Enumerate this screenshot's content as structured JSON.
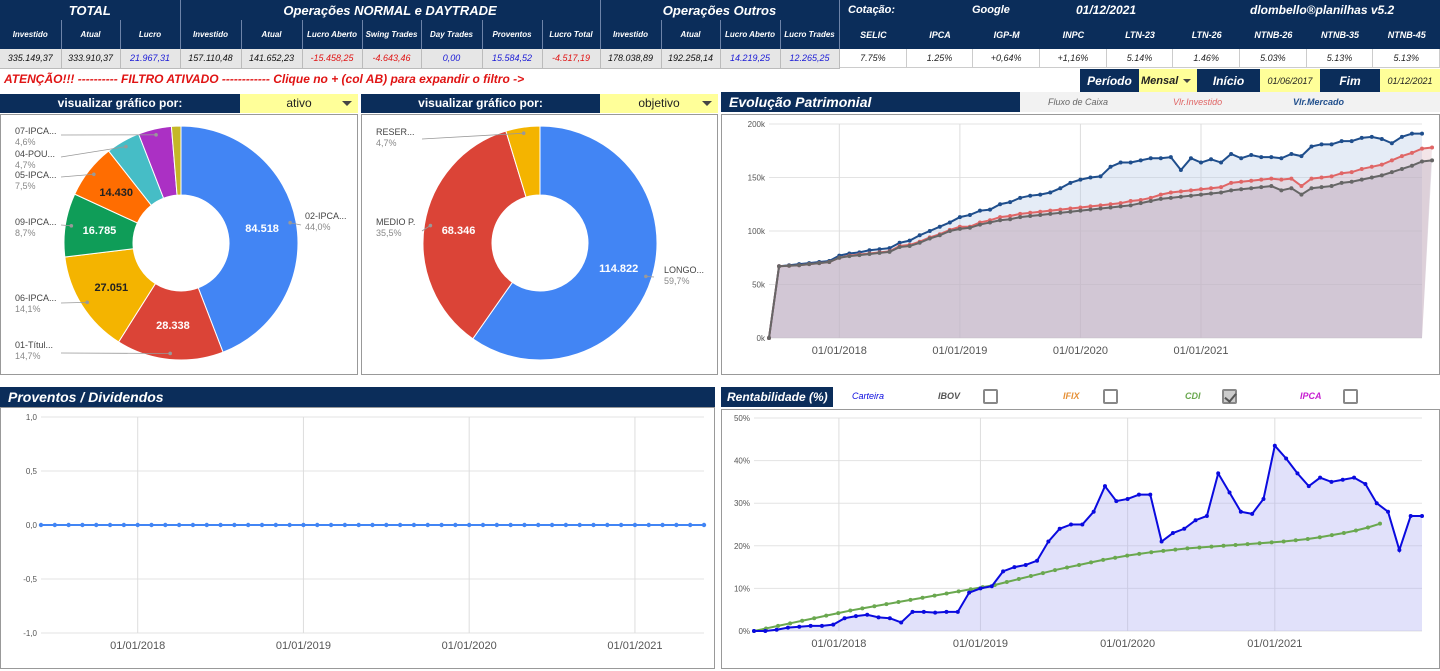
{
  "summary": {
    "groups": [
      "TOTAL",
      "Operações NORMAL e DAYTRADE",
      "Operações Outros"
    ],
    "headers": [
      "Investido",
      "Atual",
      "Lucro",
      "Investido",
      "Atual",
      "Lucro Aberto",
      "Swing Trades",
      "Day Trades",
      "Proventos",
      "Lucro Total",
      "Investido",
      "Atual",
      "Lucro Aberto",
      "Lucro Trades"
    ],
    "values": [
      "335.149,37",
      "333.910,37",
      "21.967,31",
      "157.110,48",
      "141.652,23",
      "-15.458,25",
      "-4.643,46",
      "0,00",
      "15.584,52",
      "-4.517,19",
      "178.038,89",
      "192.258,14",
      "14.219,25",
      "12.265,25"
    ]
  },
  "indicators": {
    "cotacao_label": "Cotação:",
    "source": "Google",
    "date": "01/12/2021",
    "brand": "dlombello®planilhas  v5.2",
    "names": [
      "SELIC",
      "IPCA",
      "IGP-M",
      "INPC",
      "LTN-23",
      "LTN-26",
      "NTNB-26",
      "NTNB-35",
      "NTNB-45"
    ],
    "values": [
      "7.75%",
      "1.25%",
      "+0,64%",
      "+1,16%",
      "5.14%",
      "1.46%",
      "5.03%",
      "5.13%",
      "5.13%"
    ]
  },
  "warning": "ATENÇÃO!!! ---------- FILTRO ATIVADO ------------ Clique no + (col AB) para expandir o filtro ->",
  "period": {
    "label": "Período",
    "value": "Mensal",
    "start_label": "Início",
    "start": "01/06/2017",
    "end_label": "Fim",
    "end": "01/12/2021"
  },
  "colors": {
    "navy": "#0b2d5a",
    "blue": "#4285f4",
    "red": "#db4437",
    "yellow": "#f4b400",
    "green": "#0f9d58",
    "orange": "#ff6d01",
    "teal": "#46bdc6",
    "purple": "#ab30c4",
    "olive": "#c5b727",
    "mercado": "#1f4e8c",
    "investido": "#e06666",
    "fluxo": "#666666",
    "carteira": "#0a0adf",
    "cdi": "#6aa84f"
  },
  "pie1": {
    "selector_label": "visualizar gráfico por:",
    "selected": "ativo",
    "slices": [
      {
        "label": "02-IPCA...",
        "pct": "44,0%",
        "value": "84.518",
        "v": 84518,
        "color": "#4285f4"
      },
      {
        "label": "01-Títul...",
        "pct": "14,7%",
        "value": "28.338",
        "v": 28338,
        "color": "#db4437"
      },
      {
        "label": "06-IPCA...",
        "pct": "14,1%",
        "value": "27.051",
        "v": 27051,
        "color": "#f4b400"
      },
      {
        "label": "09-IPCA...",
        "pct": "8,7%",
        "value": "16.785",
        "v": 16785,
        "color": "#0f9d58"
      },
      {
        "label": "05-IPCA...",
        "pct": "7,5%",
        "value": "14.430",
        "v": 14430,
        "color": "#ff6d01"
      },
      {
        "label": "04-POU...",
        "pct": "4,7%",
        "value": "",
        "v": 9000,
        "color": "#46bdc6"
      },
      {
        "label": "07-IPCA...",
        "pct": "4,6%",
        "value": "",
        "v": 8800,
        "color": "#ab30c4"
      },
      {
        "label": "",
        "pct": "",
        "value": "",
        "v": 2500,
        "color": "#c5b727"
      }
    ]
  },
  "pie2": {
    "selector_label": "visualizar gráfico por:",
    "selected": "objetivo",
    "slices": [
      {
        "label": "LONGO...",
        "pct": "59,7%",
        "value": "114.822",
        "v": 114822,
        "color": "#4285f4"
      },
      {
        "label": "MEDIO P.",
        "pct": "35,5%",
        "value": "68.346",
        "v": 68346,
        "color": "#db4437"
      },
      {
        "label": "RESER...",
        "pct": "4,7%",
        "value": "",
        "v": 9040,
        "color": "#f4b400"
      }
    ]
  },
  "evolucao": {
    "title": "Evolução Patrimonial",
    "legend": [
      "Fluxo de Caixa",
      "Vlr.Investido",
      "Vlr.Mercado"
    ],
    "yticks": [
      "0k",
      "50k",
      "100k",
      "150k",
      "200k"
    ],
    "xticks": [
      "01/01/2018",
      "01/01/2019",
      "01/01/2020",
      "01/01/2021"
    ],
    "chart_data": {
      "type": "area",
      "ylim": [
        0,
        200000
      ],
      "series": [
        {
          "name": "Vlr.Mercado",
          "values": [
            0,
            67000,
            68000,
            69000,
            70000,
            71000,
            72000,
            77000,
            79000,
            80000,
            82000,
            83000,
            84000,
            89000,
            91000,
            96000,
            100000,
            104000,
            108000,
            113000,
            115000,
            119000,
            120000,
            125000,
            127000,
            131000,
            133000,
            134000,
            136000,
            140000,
            145000,
            148000,
            150000,
            151000,
            160000,
            164000,
            164000,
            166000,
            168000,
            168000,
            169000,
            157000,
            168000,
            164000,
            167000,
            164000,
            172000,
            168000,
            171000,
            169000,
            169000,
            168000,
            172000,
            170000,
            179000,
            181000,
            181000,
            184000,
            184000,
            187000,
            188000,
            186000,
            182000,
            188000,
            191000,
            191000
          ]
        },
        {
          "name": "Vlr.Investido",
          "values": [
            0,
            67000,
            67500,
            68000,
            69000,
            70000,
            71000,
            75000,
            77000,
            78000,
            79000,
            80000,
            81000,
            86000,
            87000,
            90000,
            94000,
            97000,
            101000,
            104000,
            104000,
            108000,
            110000,
            113000,
            114000,
            116000,
            117000,
            118000,
            119000,
            120000,
            121000,
            122000,
            123000,
            124000,
            125000,
            126000,
            128000,
            129000,
            131000,
            134000,
            136000,
            137000,
            138000,
            139000,
            140000,
            141000,
            145000,
            146000,
            147000,
            148000,
            149000,
            148000,
            149000,
            142000,
            149000,
            150000,
            151000,
            154000,
            155000,
            158000,
            160000,
            162000,
            166000,
            170000,
            173000,
            177000,
            178000
          ]
        },
        {
          "name": "Fluxo de Caixa",
          "values": [
            0,
            67000,
            67500,
            68000,
            69000,
            70000,
            71000,
            75000,
            76500,
            77500,
            78500,
            79500,
            80500,
            85000,
            86000,
            89000,
            93000,
            96000,
            100000,
            102000,
            103000,
            106000,
            108000,
            110000,
            111000,
            113000,
            114000,
            115000,
            116000,
            117000,
            118000,
            119000,
            120000,
            121000,
            122000,
            123000,
            124000,
            126000,
            128000,
            130000,
            131000,
            132000,
            133000,
            134000,
            135000,
            136000,
            138000,
            139000,
            140000,
            141000,
            142000,
            138000,
            140000,
            134000,
            140000,
            141000,
            142000,
            145000,
            146000,
            148000,
            150000,
            152000,
            155000,
            158000,
            161000,
            165000,
            166000
          ]
        }
      ]
    }
  },
  "proventos": {
    "title": "Proventos / Dividendos",
    "yticks": [
      "1,0",
      "0,5",
      "0,0",
      "-0,5",
      "-1,0"
    ],
    "xticks": [
      "01/01/2018",
      "01/01/2019",
      "01/01/2020",
      "01/01/2021"
    ],
    "chart_data": {
      "type": "line",
      "ylim": [
        -1,
        1
      ],
      "series": [
        {
          "name": "Proventos",
          "points": 49,
          "value": 0
        }
      ]
    }
  },
  "rentabilidade": {
    "title": "Rentabilidade (%)",
    "legend": [
      {
        "name": "Carteira",
        "checked": null
      },
      {
        "name": "IBOV",
        "checked": false
      },
      {
        "name": "IFIX",
        "checked": false
      },
      {
        "name": "CDI",
        "checked": true
      },
      {
        "name": "IPCA",
        "checked": false
      }
    ],
    "yticks": [
      "50%",
      "40%",
      "30%",
      "20%",
      "10%",
      "0%"
    ],
    "xticks": [
      "01/01/2018",
      "01/01/2019",
      "01/01/2020",
      "01/01/2021"
    ],
    "chart_data": {
      "type": "line",
      "ylim": [
        0,
        50
      ],
      "series": [
        {
          "name": "Carteira",
          "values": [
            0,
            0,
            0.3,
            0.8,
            1,
            1.2,
            1.2,
            1.5,
            3,
            3.5,
            3.8,
            3.2,
            3,
            2,
            4.5,
            4.5,
            4.3,
            4.5,
            4.5,
            9,
            10,
            10.5,
            14,
            15,
            15.5,
            16.5,
            21,
            24,
            25,
            25,
            28,
            34,
            30.5,
            31,
            32,
            32,
            21,
            23,
            24,
            26,
            27,
            37,
            32.5,
            28,
            27.5,
            31,
            43.5,
            40.5,
            37,
            34,
            36,
            35,
            35.5,
            36,
            34.5,
            30,
            28,
            19,
            27,
            27
          ]
        },
        {
          "name": "CDI",
          "values": [
            0,
            0.6,
            1.2,
            1.8,
            2.4,
            3,
            3.6,
            4.2,
            4.8,
            5.3,
            5.8,
            6.3,
            6.8,
            7.3,
            7.8,
            8.3,
            8.8,
            9.3,
            9.8,
            10.3,
            10.8,
            11.5,
            12.2,
            12.9,
            13.6,
            14.3,
            14.9,
            15.5,
            16.1,
            16.7,
            17.2,
            17.7,
            18.1,
            18.5,
            18.8,
            19.1,
            19.4,
            19.6,
            19.8,
            20,
            20.2,
            20.4,
            20.6,
            20.8,
            21,
            21.3,
            21.6,
            22,
            22.5,
            23,
            23.6,
            24.3,
            25.2
          ]
        }
      ]
    }
  }
}
